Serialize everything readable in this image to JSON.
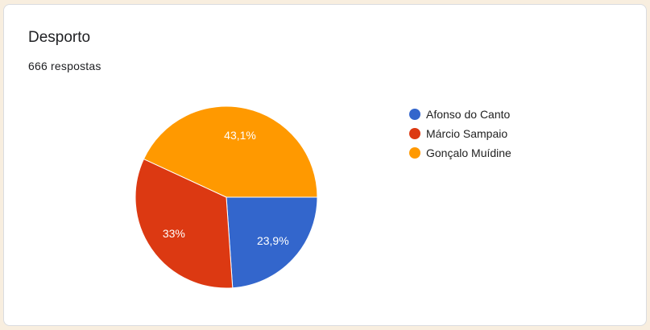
{
  "card": {
    "title": "Desporto",
    "responses": "666 respostas"
  },
  "chart_data": {
    "type": "pie",
    "title": "",
    "categories": [
      "Afonso do Canto",
      "Márcio Sampaio",
      "Gonçalo Muídine"
    ],
    "values": [
      23.9,
      33,
      43.1
    ],
    "labels": [
      "23,9%",
      "33%",
      "43,1%"
    ],
    "colors": [
      "#3366cc",
      "#dc3912",
      "#ff9900"
    ],
    "legend_position": "right"
  }
}
